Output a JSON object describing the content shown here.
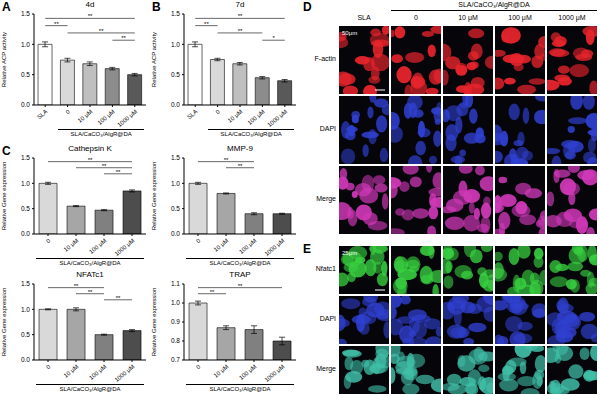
{
  "chart_data": [
    {
      "type": "bar",
      "panel": "A",
      "title": "4d",
      "y_label": "Relative ACP activity",
      "categories": [
        "SLA",
        "0",
        "10 μM",
        "100 μM",
        "1000 μM"
      ],
      "values": [
        1.0,
        0.74,
        0.68,
        0.6,
        0.5
      ],
      "errors": [
        0.04,
        0.03,
        0.03,
        0.02,
        0.02
      ],
      "colors": [
        "#ffffff",
        "#d9d9d9",
        "#bfbfbf",
        "#8c8c8c",
        "#595959"
      ],
      "ylim": [
        0,
        1.5
      ],
      "yticks": [
        {
          "value": 0,
          "label": "0.0"
        },
        0.5,
        {
          "value": 1,
          "label": "1.0"
        },
        1.5
      ],
      "group": {
        "label": "SLA/CaCO₃/AlgR@DA",
        "categories": [
          "0",
          "10 μM",
          "100 μM",
          "1000 μM"
        ]
      },
      "significance": [
        {
          "from": "SLA",
          "to": "1000 μM",
          "text": "**"
        },
        {
          "from": "SLA",
          "to": "0",
          "text": "**"
        },
        {
          "from": "0",
          "to": "1000 μM",
          "text": "**"
        },
        {
          "from": "100 μM",
          "to": "1000 μM",
          "text": "**"
        }
      ]
    },
    {
      "type": "bar",
      "panel": "B",
      "title": "7d",
      "y_label": "Relative ACP activity",
      "categories": [
        "SLA",
        "0",
        "10 μM",
        "100 μM",
        "1000 μM"
      ],
      "values": [
        1.0,
        0.75,
        0.68,
        0.45,
        0.4
      ],
      "errors": [
        0.04,
        0.02,
        0.02,
        0.02,
        0.02
      ],
      "colors": [
        "#ffffff",
        "#d9d9d9",
        "#bfbfbf",
        "#8c8c8c",
        "#595959"
      ],
      "ylim": [
        0,
        1.5
      ],
      "yticks": [
        {
          "value": 0,
          "label": "0.0"
        },
        0.5,
        {
          "value": 1,
          "label": "1.0"
        },
        1.5
      ],
      "group": {
        "label": "SLA/CaCO₃/AlgR@DA",
        "categories": [
          "0",
          "10 μM",
          "100 μM",
          "1000 μM"
        ]
      },
      "significance": [
        {
          "from": "SLA",
          "to": "1000 μM",
          "text": "**"
        },
        {
          "from": "SLA",
          "to": "0",
          "text": "**"
        },
        {
          "from": "0",
          "to": "100 μM",
          "text": "**"
        },
        {
          "from": "100 μM",
          "to": "1000 μM",
          "text": "*"
        }
      ]
    },
    {
      "type": "bar",
      "panel": "C",
      "title": "Cathepsin K",
      "y_label": "Relative Gene expression",
      "categories": [
        "0",
        "10 μM",
        "100 μM",
        "1000 μM"
      ],
      "values": [
        1.0,
        0.55,
        0.47,
        0.85
      ],
      "errors": [
        0.02,
        0.01,
        0.01,
        0.02
      ],
      "colors": [
        "#d9d9d9",
        "#a6a6a6",
        "#808080",
        "#4d4d4d"
      ],
      "ylim": [
        0,
        1.5
      ],
      "yticks": [
        {
          "value": 0,
          "label": "0.0"
        },
        0.5,
        {
          "value": 1,
          "label": "1.0"
        },
        1.5
      ],
      "group": {
        "label": "SLA/CaCO₃/AlgR@DA",
        "categories": [
          "0",
          "10 μM",
          "100 μM",
          "1000 μM"
        ]
      },
      "significance": [
        {
          "from": "0",
          "to": "1000 μM",
          "text": "**"
        },
        {
          "from": "10 μM",
          "to": "1000 μM",
          "text": "**"
        },
        {
          "from": "100 μM",
          "to": "1000 μM",
          "text": "**"
        }
      ]
    },
    {
      "type": "bar",
      "title": "MMP-9",
      "y_label": "Relative Gene expression",
      "categories": [
        "0",
        "10 μM",
        "100 μM",
        "1000 μM"
      ],
      "values": [
        1.0,
        0.8,
        0.4,
        0.4
      ],
      "errors": [
        0.02,
        0.01,
        0.02,
        0.01
      ],
      "colors": [
        "#d9d9d9",
        "#a6a6a6",
        "#808080",
        "#4d4d4d"
      ],
      "ylim": [
        0,
        1.5
      ],
      "yticks": [
        {
          "value": 0,
          "label": "0.0"
        },
        0.5,
        {
          "value": 1,
          "label": "1.0"
        },
        1.5
      ],
      "group": {
        "label": "SLA/CaCO₃/AlgR@DA",
        "categories": [
          "0",
          "10 μM",
          "100 μM",
          "1000 μM"
        ]
      },
      "significance": [
        {
          "from": "0",
          "to": "100 μM",
          "text": "**"
        },
        {
          "from": "10 μM",
          "to": "100 μM",
          "text": "**"
        }
      ]
    },
    {
      "type": "bar",
      "title": "NFATc1",
      "y_label": "Relative Gene expression",
      "categories": [
        "0",
        "10 μM",
        "100 μM",
        "1000 μM"
      ],
      "values": [
        1.0,
        1.0,
        0.5,
        0.58
      ],
      "errors": [
        0.01,
        0.03,
        0.01,
        0.02
      ],
      "colors": [
        "#d9d9d9",
        "#a6a6a6",
        "#808080",
        "#4d4d4d"
      ],
      "ylim": [
        0,
        1.5
      ],
      "yticks": [
        {
          "value": 0,
          "label": "0.0"
        },
        0.5,
        {
          "value": 1,
          "label": "1.0"
        },
        1.5
      ],
      "group": {
        "label": "SLA/CaCO₃/AlgR@DA",
        "categories": [
          "0",
          "10 μM",
          "100 μM",
          "1000 μM"
        ]
      },
      "significance": [
        {
          "from": "0",
          "to": "100 μM",
          "text": "**"
        },
        {
          "from": "10 μM",
          "to": "100 μM",
          "text": "**"
        },
        {
          "from": "100 μM",
          "to": "1000 μM",
          "text": "**"
        }
      ]
    },
    {
      "type": "bar",
      "title": "TRAP",
      "y_label": "Relative Gene expression",
      "categories": [
        "0",
        "10 μM",
        "100 μM",
        "1000 μM"
      ],
      "values": [
        1.0,
        0.87,
        0.86,
        0.8
      ],
      "errors": [
        0.01,
        0.01,
        0.02,
        0.02
      ],
      "colors": [
        "#d9d9d9",
        "#a6a6a6",
        "#808080",
        "#4d4d4d"
      ],
      "ylim": [
        0.7,
        1.1
      ],
      "yticks": [
        0.7,
        0.8,
        0.9,
        {
          "value": 1,
          "label": "1.0"
        },
        1.1
      ],
      "group": {
        "label": "SLA/CaCO₃/AlgR@DA",
        "categories": [
          "0",
          "10 μM",
          "100 μM",
          "1000 μM"
        ]
      },
      "significance": [
        {
          "from": "0",
          "to": "1000 μM",
          "text": "**"
        },
        {
          "from": "0",
          "to": "10 μM",
          "text": "**"
        }
      ]
    }
  ],
  "images": [
    {
      "panel": "D",
      "group_label": "SLA/CaCO₃/AlgR@DA",
      "columns": [
        "SLA",
        "0",
        "10 μM",
        "100 μM",
        "1000 μM"
      ],
      "rows": [
        {
          "label": "F-actin",
          "color": "#e8242c"
        },
        {
          "label": "DAPI",
          "color": "#3040d0"
        },
        {
          "label": "Merge",
          "color": "#d038b8"
        }
      ],
      "scale_bar": "50μm"
    },
    {
      "panel": "E",
      "rows": [
        {
          "label": "Nfatc1",
          "color": "#38d040"
        },
        {
          "label": "DAPI",
          "color": "#3040d0"
        },
        {
          "label": "Merge",
          "color": "#40c0a8"
        }
      ],
      "scale_bar": "25μm"
    }
  ]
}
